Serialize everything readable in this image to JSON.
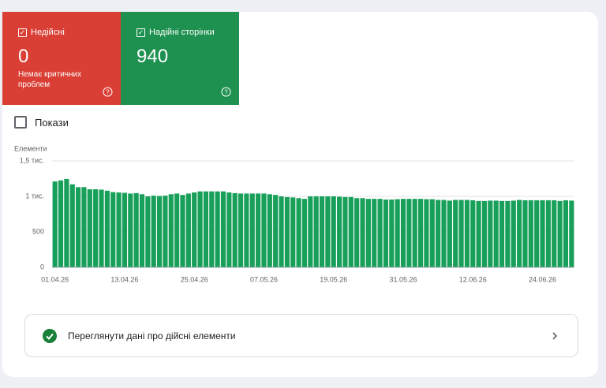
{
  "cards": [
    {
      "label": "Недійсні",
      "value": "0",
      "note": "Немає критичних проблем"
    },
    {
      "label": "Надійні сторінки",
      "value": "940"
    }
  ],
  "toggle": "Покази",
  "chart_data": {
    "type": "bar",
    "y_label": "Елементи",
    "color": "#18a05a",
    "grid": true,
    "ylim": [
      0,
      1500
    ],
    "yticks": [
      0,
      500,
      {
        "value": 1000,
        "label": "1 тис."
      },
      {
        "value": 1500,
        "label": "1,5 тис."
      }
    ],
    "categories": [
      "01.04.26",
      null,
      null,
      null,
      null,
      null,
      null,
      null,
      null,
      null,
      null,
      null,
      "13.04.26",
      null,
      null,
      null,
      null,
      null,
      null,
      null,
      null,
      null,
      null,
      null,
      "25.04.26",
      null,
      null,
      null,
      null,
      null,
      null,
      null,
      null,
      null,
      null,
      null,
      "07.05.26",
      null,
      null,
      null,
      null,
      null,
      null,
      null,
      null,
      null,
      null,
      null,
      "19.05.26",
      null,
      null,
      null,
      null,
      null,
      null,
      null,
      null,
      null,
      null,
      null,
      "31.05.26",
      null,
      null,
      null,
      null,
      null,
      null,
      null,
      null,
      null,
      null,
      null,
      "12.06.26",
      null,
      null,
      null,
      null,
      null,
      null,
      null,
      null,
      null,
      null,
      null,
      "24.06.26",
      null,
      null,
      null,
      null,
      null
    ],
    "values": [
      1210,
      1225,
      1245,
      1170,
      1130,
      1130,
      1100,
      1100,
      1095,
      1080,
      1060,
      1055,
      1050,
      1040,
      1045,
      1030,
      1000,
      1010,
      1005,
      1010,
      1030,
      1040,
      1020,
      1040,
      1055,
      1070,
      1070,
      1070,
      1070,
      1070,
      1055,
      1045,
      1040,
      1040,
      1040,
      1040,
      1040,
      1030,
      1020,
      1000,
      990,
      985,
      975,
      965,
      1000,
      1000,
      1000,
      1000,
      1000,
      995,
      990,
      990,
      975,
      975,
      965,
      965,
      965,
      955,
      955,
      960,
      965,
      965,
      965,
      965,
      960,
      960,
      950,
      950,
      940,
      950,
      950,
      950,
      945,
      935,
      935,
      940,
      940,
      935,
      935,
      940,
      950,
      945,
      945,
      945,
      945,
      945,
      945,
      935,
      945,
      940
    ]
  },
  "link": "Переглянути дані про дійсні елементи"
}
